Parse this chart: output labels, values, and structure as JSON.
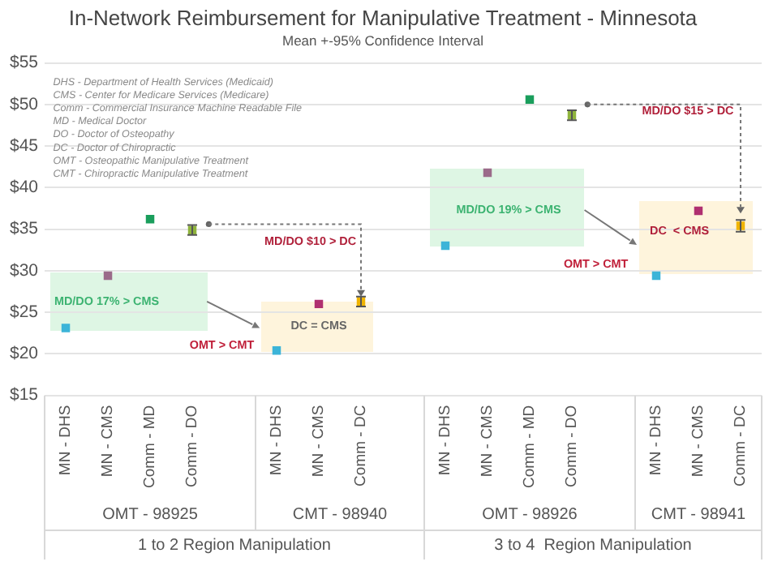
{
  "chart_data": {
    "type": "scatter",
    "title": "In-Network Reimbursement for Manipulative Treatment - Minnesota",
    "subtitle": "Mean +-95% Confidence Interval",
    "categories": [
      "MN - DHS",
      "MN - CMS",
      "Comm - MD",
      "Comm - DO",
      null,
      "MN - DHS",
      "MN - CMS",
      "Comm - DC",
      null,
      "MN - DHS",
      "MN - CMS",
      "Comm - MD",
      "Comm - DO",
      null,
      "MN - DHS",
      "MN - CMS",
      "Comm - DC"
    ],
    "values": [
      23.1,
      29.4,
      36.2,
      34.9,
      null,
      20.4,
      26.0,
      26.3,
      null,
      33.0,
      41.8,
      50.6,
      48.7,
      null,
      29.4,
      37.2,
      35.4
    ],
    "errors": [
      null,
      null,
      null,
      0.6,
      null,
      null,
      null,
      0.6,
      null,
      null,
      null,
      null,
      0.6,
      null,
      null,
      null,
      0.7
    ],
    "colors": [
      "#3cb4d8",
      "#9b6b8a",
      "#1a9e5c",
      "#8fb43c",
      null,
      "#3cb4d8",
      "#b03070",
      "#f0b400",
      null,
      "#3cb4d8",
      "#9b6b8a",
      "#1a9e5c",
      "#8fb43c",
      null,
      "#3cb4d8",
      "#b03070",
      "#f0b400"
    ],
    "ylim": [
      15,
      55
    ],
    "yticks": [
      {
        "value": 15,
        "label": "$15"
      },
      {
        "value": 20,
        "label": "$20"
      },
      {
        "value": 25,
        "label": "$25"
      },
      {
        "value": 30,
        "label": "$30"
      },
      {
        "value": 35,
        "label": "$35"
      },
      {
        "value": 40,
        "label": "$40"
      },
      {
        "value": 45,
        "label": "$45"
      },
      {
        "value": 50,
        "label": "$50"
      },
      {
        "value": 55,
        "label": "$55"
      }
    ],
    "grid": "y",
    "legend": false,
    "marker": "square",
    "annotations": [
      "DHS - Department of Health Services (Medicaid)",
      "CMS - Center for Medicare Services (Medicare)",
      "Comm - Commercial Insurance Machine Readable File",
      "MD - Medical Doctor",
      "DO - Doctor of Osteopathy",
      "DC - Doctor of Chiropractic",
      "OMT - Osteopathic Manipulative Treatment",
      "CMT - Chiropractic Manipulative Treatment",
      "MD/DO 17% > CMS",
      "MD/DO $10 > DC",
      "OMT > CMT",
      "DC = CMS",
      "MD/DO 19% > CMS",
      "OMT > CMT",
      "MD/DO $15 > DC",
      "DC  < CMS",
      "OMT - 98925",
      "CMT - 98940",
      "OMT - 98926",
      "CMT - 98941",
      "1 to 2 Region Manipulation",
      "3 to 4  Region Manipulation"
    ]
  }
}
